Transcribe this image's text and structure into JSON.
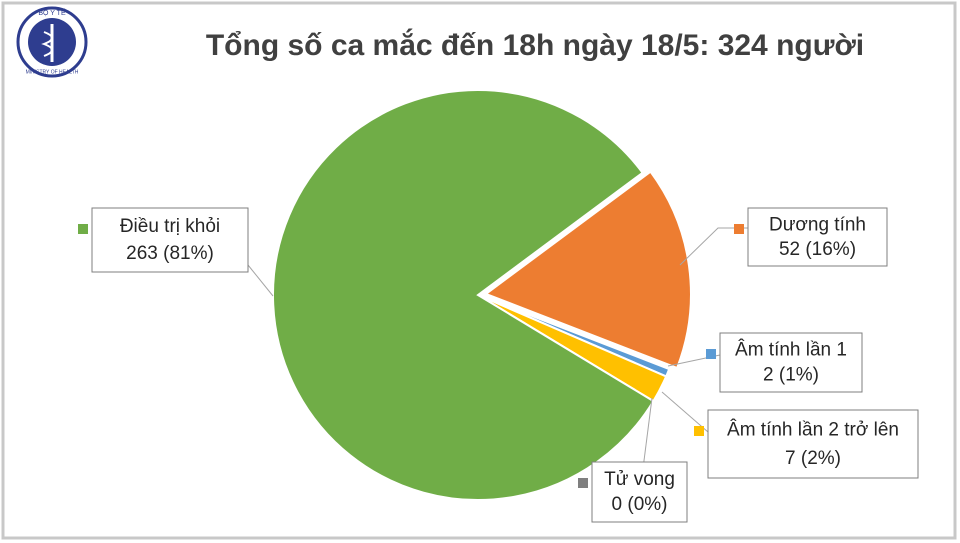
{
  "logo": {
    "top": "BỘ Y TẾ",
    "bottom": "MINISTRY OF HEALTH"
  },
  "chart_data": {
    "type": "pie",
    "title": "Tổng số ca mắc đến 18h ngày 18/5: 324 người",
    "categories": [
      "Dương tính",
      "Âm tính lần 1",
      "Âm tính lần 2 trở lên",
      "Tử vong",
      "Điều trị khỏi"
    ],
    "values": [
      52,
      2,
      7,
      0,
      263
    ],
    "value_labels": [
      "52 (16%)",
      "2 (1%)",
      "7 (2%)",
      "0 (0%)",
      "263 (81%)"
    ],
    "colors": [
      "#ed7d31",
      "#5b9bd5",
      "#ffc000",
      "#7f7f7f",
      "#70ad47"
    ],
    "exploded": [
      0
    ]
  }
}
